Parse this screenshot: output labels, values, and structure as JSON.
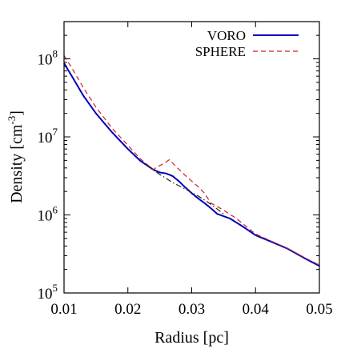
{
  "chart_data": {
    "type": "line",
    "xlabel": "Radius [pc]",
    "ylabel": {
      "main": "Density [cm",
      "exp": "-3",
      "close": "]"
    },
    "xlim": [
      0.01,
      0.05
    ],
    "ylim": [
      100000,
      300000000
    ],
    "yscale": "log",
    "grid": false,
    "legend_position": "top-right",
    "x_ticks": [
      "0.01",
      "0.02",
      "0.03",
      "0.04",
      "0.05"
    ],
    "y_ticks": [
      {
        "base": "10",
        "exp": "5"
      },
      {
        "base": "10",
        "exp": "6"
      },
      {
        "base": "10",
        "exp": "7"
      },
      {
        "base": "10",
        "exp": "8"
      }
    ],
    "series": [
      {
        "name": "VORO",
        "color": "#0000bb",
        "dash": "solid",
        "points": [
          [
            0.01,
            88000000
          ],
          [
            0.0115,
            55000000
          ],
          [
            0.013,
            34000000
          ],
          [
            0.015,
            20000000
          ],
          [
            0.0175,
            11500000
          ],
          [
            0.02,
            7000000
          ],
          [
            0.022,
            4900000
          ],
          [
            0.024,
            3800000
          ],
          [
            0.025,
            3500000
          ],
          [
            0.026,
            3400000
          ],
          [
            0.027,
            3150000
          ],
          [
            0.028,
            2700000
          ],
          [
            0.029,
            2250000
          ],
          [
            0.03,
            1900000
          ],
          [
            0.031,
            1630000
          ],
          [
            0.032,
            1420000
          ],
          [
            0.033,
            1220000
          ],
          [
            0.034,
            1030000
          ],
          [
            0.036,
            900000
          ],
          [
            0.038,
            710000
          ],
          [
            0.04,
            550000
          ],
          [
            0.042,
            470000
          ],
          [
            0.045,
            370000
          ],
          [
            0.048,
            270000
          ],
          [
            0.05,
            222000
          ]
        ]
      },
      {
        "name": "SPHERE",
        "color": "#cc2222",
        "dash": "dashed",
        "points": [
          [
            0.01,
            110000000
          ],
          [
            0.0115,
            70000000
          ],
          [
            0.013,
            43000000
          ],
          [
            0.015,
            24000000
          ],
          [
            0.0175,
            13000000
          ],
          [
            0.02,
            7800000
          ],
          [
            0.022,
            5200000
          ],
          [
            0.024,
            3800000
          ],
          [
            0.0245,
            4100000
          ],
          [
            0.0255,
            4500000
          ],
          [
            0.0265,
            5100000
          ],
          [
            0.0275,
            4200000
          ],
          [
            0.029,
            3200000
          ],
          [
            0.031,
            2300000
          ],
          [
            0.032,
            1900000
          ],
          [
            0.033,
            1420000
          ],
          [
            0.035,
            1150000
          ],
          [
            0.037,
            900000
          ],
          [
            0.04,
            570000
          ],
          [
            0.042,
            480000
          ],
          [
            0.045,
            375000
          ],
          [
            0.048,
            275000
          ],
          [
            0.05,
            228000
          ]
        ]
      },
      {
        "name": "",
        "color": "#222222",
        "dash": "dashdot",
        "points": [
          [
            0.023,
            4300000
          ],
          [
            0.025,
            3300000
          ],
          [
            0.027,
            2600000
          ],
          [
            0.029,
            2150000
          ],
          [
            0.031,
            1750000
          ],
          [
            0.033,
            1370000
          ],
          [
            0.035,
            1030000
          ]
        ]
      }
    ]
  }
}
